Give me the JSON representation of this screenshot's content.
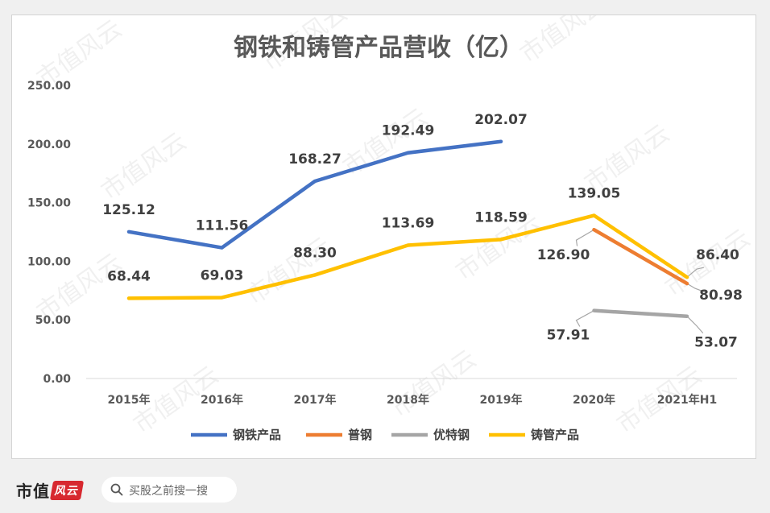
{
  "chart_data": {
    "type": "line",
    "title": "钢铁和铸管产品营收（亿）",
    "categories": [
      "2015年",
      "2016年",
      "2017年",
      "2018年",
      "2019年",
      "2020年",
      "2021年H1"
    ],
    "y_ticks": [
      "0.00",
      "50.00",
      "100.00",
      "150.00",
      "200.00",
      "250.00"
    ],
    "ylim": [
      0,
      250
    ],
    "grid": false,
    "legend_position": "bottom",
    "series": [
      {
        "name": "钢铁产品",
        "color": "#4472c4",
        "values": [
          125.12,
          111.56,
          168.27,
          192.49,
          202.07,
          null,
          null
        ],
        "labels": [
          "125.12",
          "111.56",
          "168.27",
          "192.49",
          "202.07",
          null,
          null
        ]
      },
      {
        "name": "普钢",
        "color": "#ed7d31",
        "values": [
          null,
          null,
          null,
          null,
          null,
          126.9,
          80.98
        ],
        "labels": [
          null,
          null,
          null,
          null,
          null,
          "126.90",
          "80.98"
        ]
      },
      {
        "name": "优特钢",
        "color": "#a5a5a5",
        "values": [
          null,
          null,
          null,
          null,
          null,
          57.91,
          53.07
        ],
        "labels": [
          null,
          null,
          null,
          null,
          null,
          "57.91",
          "53.07"
        ]
      },
      {
        "name": "铸管产品",
        "color": "#ffc000",
        "values": [
          68.44,
          69.03,
          88.3,
          113.69,
          118.59,
          139.05,
          86.4
        ],
        "labels": [
          "68.44",
          "69.03",
          "88.30",
          "113.69",
          "118.59",
          "139.05",
          "86.40"
        ]
      }
    ]
  },
  "watermark": "市值风云",
  "footer": {
    "brand": "市值",
    "brand_logo": "风云",
    "search_placeholder": "买股之前搜一搜",
    "search_icon": "search-icon"
  }
}
